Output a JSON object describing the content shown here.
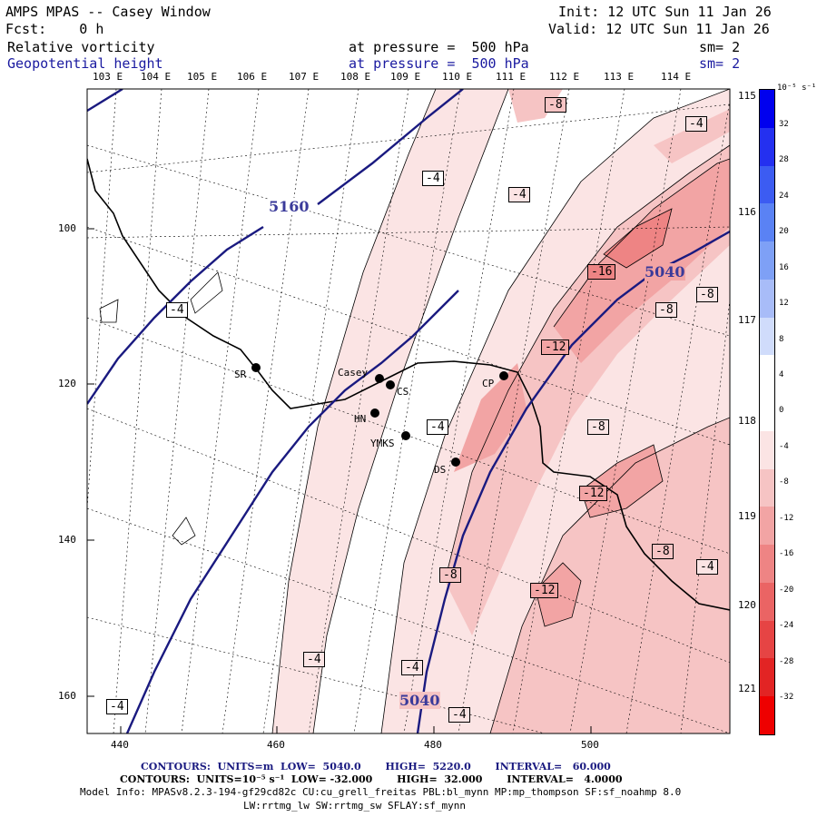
{
  "header": {
    "title": "AMPS MPAS -- Casey Window",
    "init": "Init: 12 UTC Sun 11 Jan 26",
    "valid": "Valid: 12 UTC Sun 11 Jan 26",
    "fcst": "Fcst:    0 h",
    "field1": "Relative vorticity",
    "field1_level": "at pressure =  500 hPa",
    "field1_sm": "sm= 2",
    "field2": "Geopotential height",
    "field2_level": "at pressure =  500 hPa",
    "field2_sm": "sm= 2"
  },
  "top_lon_labels": [
    "103 E",
    "104 E",
    "105 E",
    "106 E",
    "107 E",
    "108 E",
    "109 E",
    "110 E",
    "111 E",
    "112 E",
    "113 E",
    "114 E"
  ],
  "right_lon_labels": [
    "115 E",
    "116 E",
    "117 E",
    "118 E",
    "119 E",
    "120 E",
    "121 E"
  ],
  "x_ticks": [
    "440",
    "460",
    "480",
    "500"
  ],
  "y_ticks": [
    "100",
    "120",
    "140",
    "160"
  ],
  "stations": [
    {
      "name": "SR"
    },
    {
      "name": "Casey"
    },
    {
      "name": "CS"
    },
    {
      "name": "HN"
    },
    {
      "name": "YMKS"
    },
    {
      "name": "DS"
    },
    {
      "name": "CP"
    }
  ],
  "height_labels": [
    "5160",
    "5040",
    "5040"
  ],
  "vort_labels": [
    "-8",
    "-4",
    "-4",
    "-4",
    "-4",
    "-16",
    "-8",
    "-8",
    "-12",
    "-8",
    "-4",
    "-12",
    "-8",
    "-4",
    "-12",
    "-8",
    "-4",
    "-4",
    "-4",
    "-4"
  ],
  "colorbar": {
    "unit": "10⁻⁵ s⁻¹",
    "labels": [
      "32",
      "28",
      "24",
      "20",
      "16",
      "12",
      "8",
      "4",
      "0",
      "-4",
      "-8",
      "-12",
      "-16",
      "-20",
      "-24",
      "-28",
      "-32"
    ],
    "colors": [
      "#0000ee",
      "#2430f0",
      "#3c5cf2",
      "#5a82f4",
      "#7ea0f6",
      "#a8bcf8",
      "#d0dcfb",
      "#ffffff",
      "#ffffff",
      "#fbe4e4",
      "#f6c4c4",
      "#f2a4a4",
      "#ee8484",
      "#ea6464",
      "#e64444",
      "#e22424",
      "#ee0000"
    ]
  },
  "footer": {
    "contours1": "CONTOURS:  UNITS=m  LOW=  5040.0       HIGH=  5220.0       INTERVAL=   60.000",
    "contours2": "CONTOURS:  UNITS=10⁻⁵ s⁻¹  LOW= -32.000       HIGH=  32.000       INTERVAL=   4.0000",
    "model": "Model Info: MPASv8.2.3-194-gf29cd82c CU:cu_grell_freitas PBL:bl_mynn MP:mp_thompson SF:sf_noahmp 8.0",
    "model2": "LW:rrtmg_lw SW:rrtmg_sw SFLAY:sf_mynn"
  }
}
